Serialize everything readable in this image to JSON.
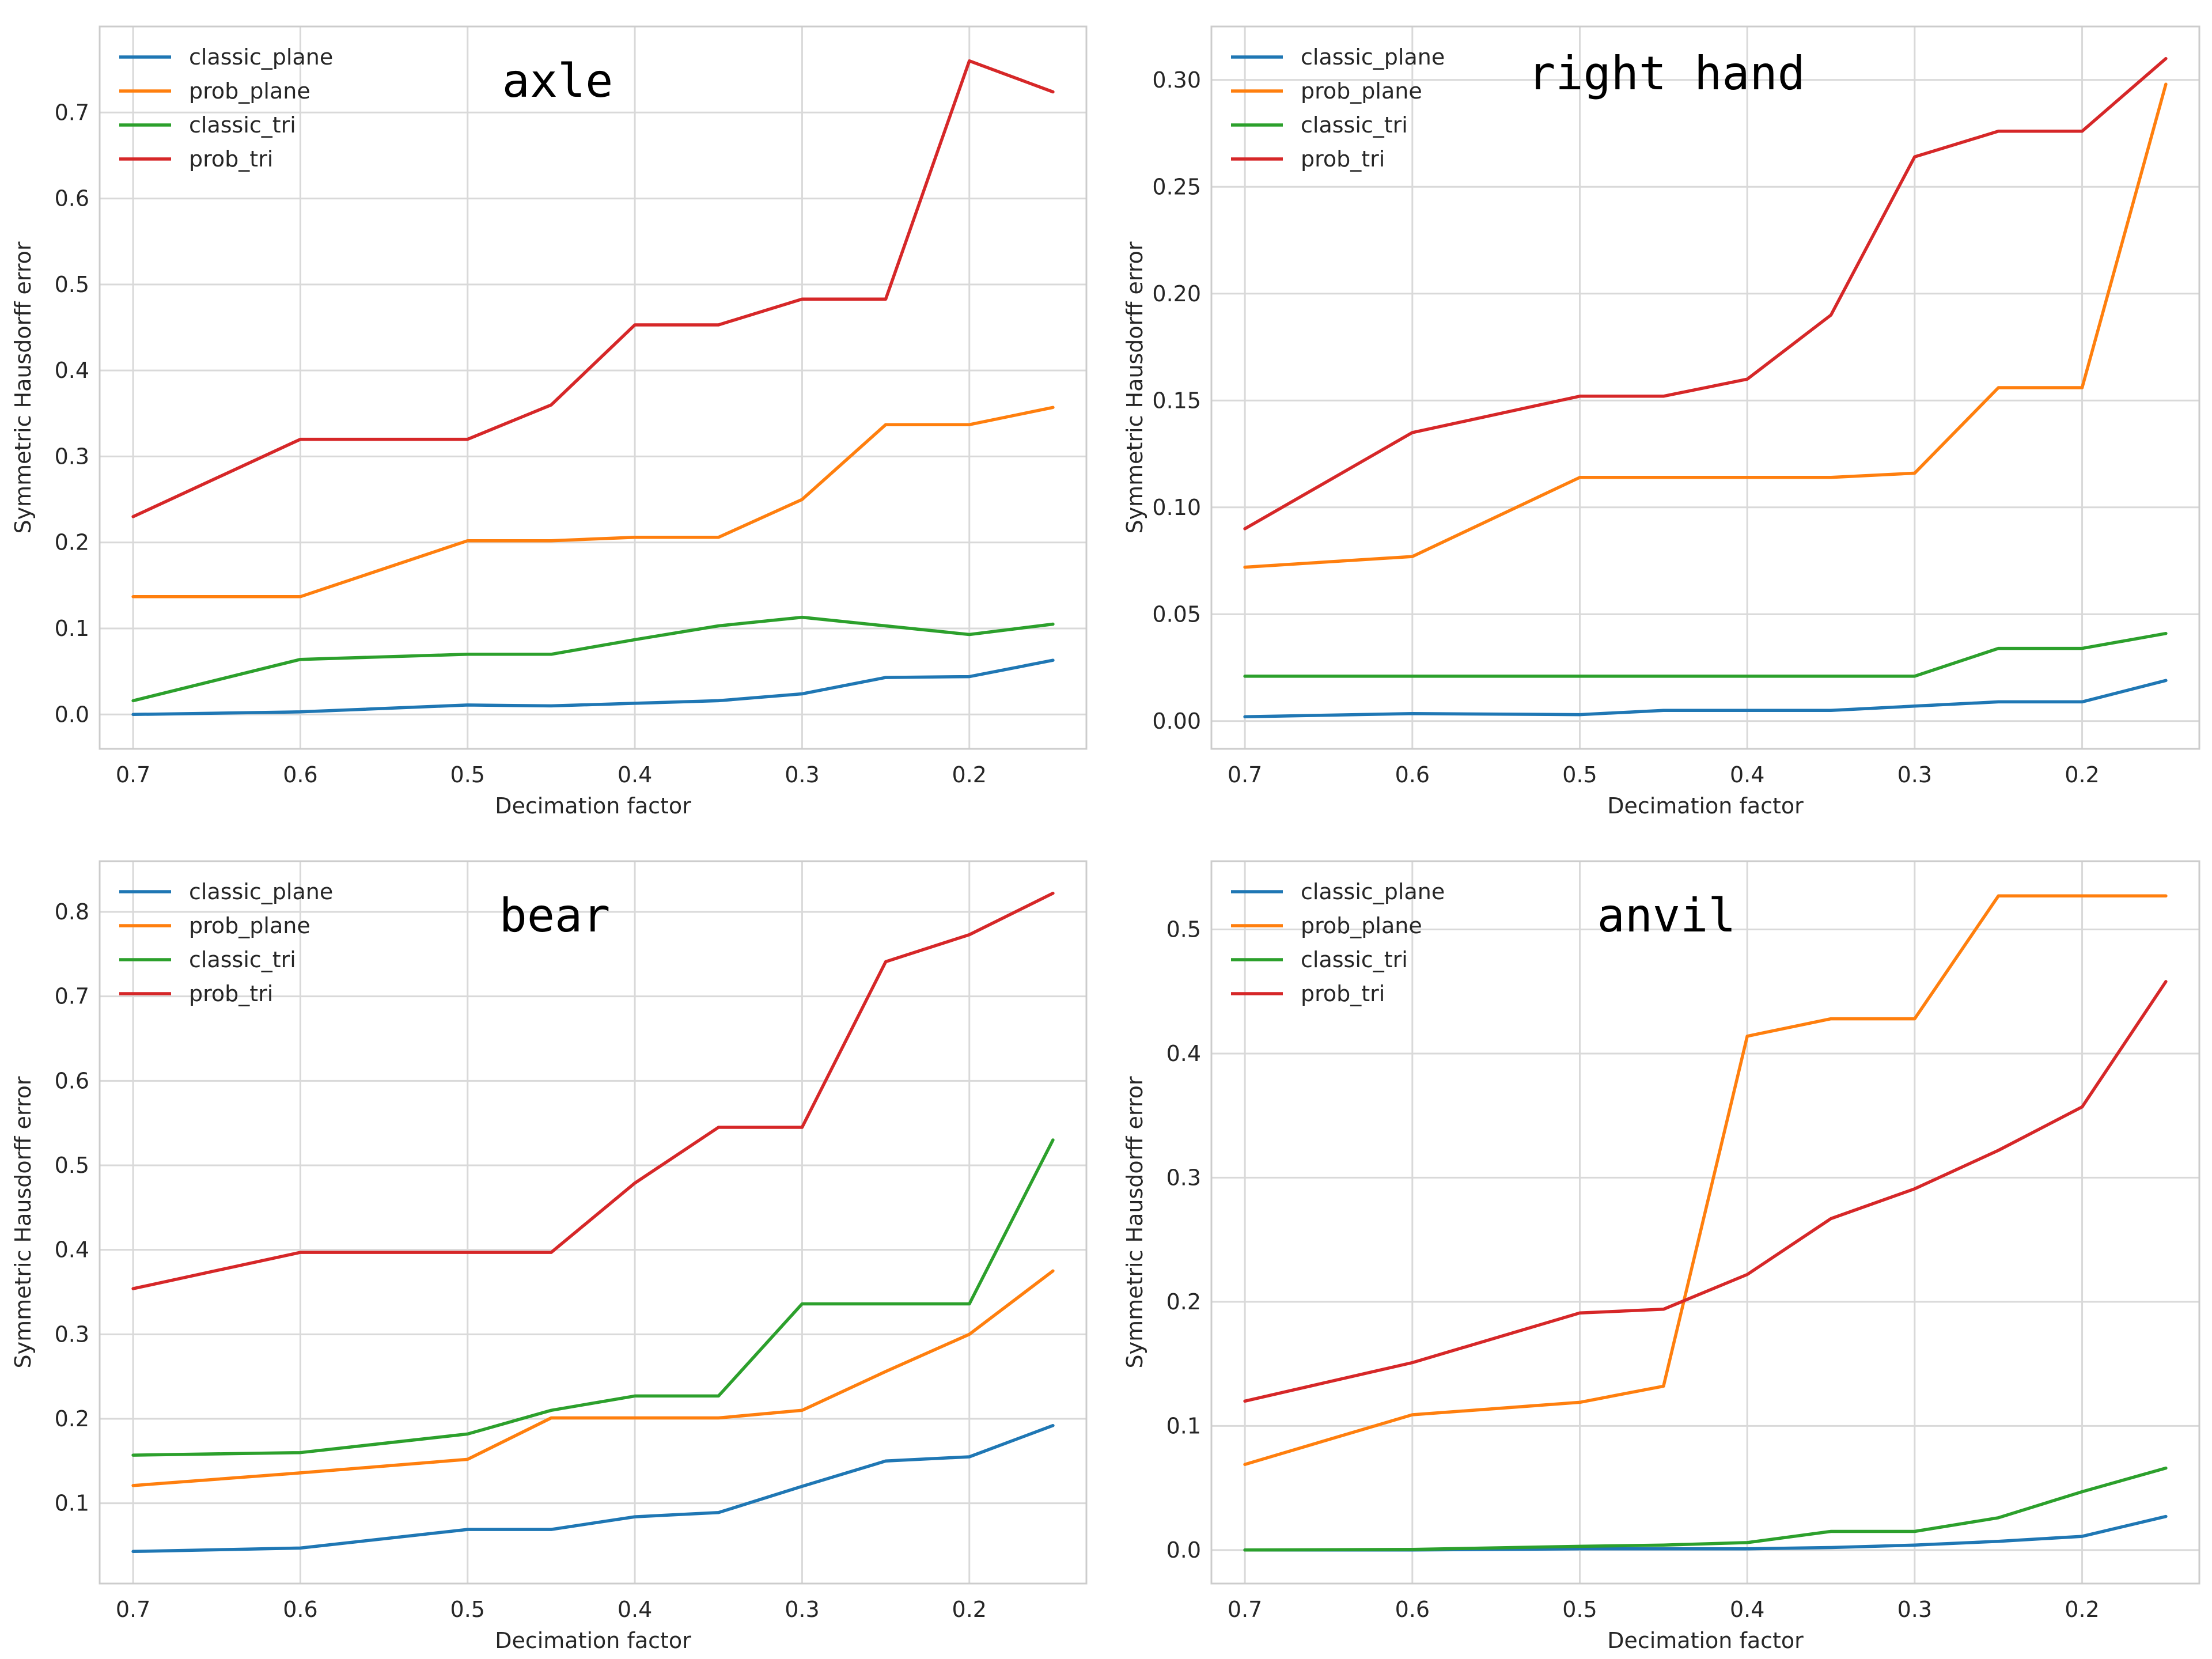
{
  "figure": {
    "background": "#ffffff",
    "panel_background": "#ffffff",
    "grid_color": "#d9d9d9",
    "frame_color": "#cccccc"
  },
  "chart_data": [
    {
      "type": "line",
      "title": "axle",
      "xlabel": "Decimation factor",
      "ylabel": "Symmetric Hausdorff error",
      "x": [
        0.7,
        0.6,
        0.5,
        0.45,
        0.4,
        0.35,
        0.3,
        0.25,
        0.2,
        0.15
      ],
      "xlim": [
        0.72,
        0.13
      ],
      "xticks": [
        "0.7",
        "0.6",
        "0.5",
        "0.4",
        "0.3",
        "0.2"
      ],
      "ylim": [
        -0.04,
        0.8
      ],
      "yticks": [
        "0.0",
        "0.1",
        "0.2",
        "0.3",
        "0.4",
        "0.5",
        "0.6",
        "0.7"
      ],
      "grid": true,
      "legend": "top-left",
      "series": [
        {
          "name": "classic_plane",
          "color": "#1f77b4",
          "values": [
            0.0,
            0.003,
            0.011,
            0.01,
            0.013,
            0.016,
            0.024,
            0.043,
            0.044,
            0.063
          ]
        },
        {
          "name": "prob_plane",
          "color": "#ff7f0e",
          "values": [
            0.137,
            0.137,
            0.202,
            0.202,
            0.206,
            0.206,
            0.25,
            0.337,
            0.337,
            0.357
          ]
        },
        {
          "name": "classic_tri",
          "color": "#2ca02c",
          "values": [
            0.016,
            0.064,
            0.07,
            0.07,
            0.087,
            0.103,
            0.113,
            0.103,
            0.093,
            0.105
          ]
        },
        {
          "name": "prob_tri",
          "color": "#d62728",
          "values": [
            0.23,
            0.32,
            0.32,
            0.36,
            0.453,
            0.453,
            0.483,
            0.483,
            0.76,
            0.724
          ]
        }
      ]
    },
    {
      "type": "line",
      "title": "right hand",
      "xlabel": "Decimation factor",
      "ylabel": "Symmetric Hausdorff error",
      "x": [
        0.7,
        0.6,
        0.5,
        0.45,
        0.4,
        0.35,
        0.3,
        0.25,
        0.2,
        0.15
      ],
      "xlim": [
        0.72,
        0.13
      ],
      "xticks": [
        "0.7",
        "0.6",
        "0.5",
        "0.4",
        "0.3",
        "0.2"
      ],
      "ylim": [
        -0.013,
        0.325
      ],
      "yticks": [
        "0.00",
        "0.05",
        "0.10",
        "0.15",
        "0.20",
        "0.25",
        "0.30"
      ],
      "grid": true,
      "legend": "top-left",
      "series": [
        {
          "name": "classic_plane",
          "color": "#1f77b4",
          "values": [
            0.002,
            0.0035,
            0.003,
            0.005,
            0.005,
            0.005,
            0.007,
            0.009,
            0.009,
            0.019
          ]
        },
        {
          "name": "prob_plane",
          "color": "#ff7f0e",
          "values": [
            0.072,
            0.077,
            0.114,
            0.114,
            0.114,
            0.114,
            0.116,
            0.156,
            0.156,
            0.298
          ]
        },
        {
          "name": "classic_tri",
          "color": "#2ca02c",
          "values": [
            0.021,
            0.021,
            0.021,
            0.021,
            0.021,
            0.021,
            0.021,
            0.034,
            0.034,
            0.041
          ]
        },
        {
          "name": "prob_tri",
          "color": "#d62728",
          "values": [
            0.09,
            0.135,
            0.152,
            0.152,
            0.16,
            0.19,
            0.264,
            0.276,
            0.276,
            0.31
          ]
        }
      ]
    },
    {
      "type": "line",
      "title": "bear",
      "xlabel": "Decimation factor",
      "ylabel": "Symmetric Hausdorff error",
      "x": [
        0.7,
        0.6,
        0.5,
        0.45,
        0.4,
        0.35,
        0.3,
        0.25,
        0.2,
        0.15
      ],
      "xlim": [
        0.72,
        0.13
      ],
      "xticks": [
        "0.7",
        "0.6",
        "0.5",
        "0.4",
        "0.3",
        "0.2"
      ],
      "ylim": [
        0.005,
        0.86
      ],
      "yticks": [
        "0.1",
        "0.2",
        "0.3",
        "0.4",
        "0.5",
        "0.6",
        "0.7",
        "0.8"
      ],
      "grid": true,
      "legend": "top-left",
      "series": [
        {
          "name": "classic_plane",
          "color": "#1f77b4",
          "values": [
            0.043,
            0.047,
            0.069,
            0.069,
            0.084,
            0.089,
            0.12,
            0.15,
            0.155,
            0.192
          ]
        },
        {
          "name": "prob_plane",
          "color": "#ff7f0e",
          "values": [
            0.121,
            0.136,
            0.152,
            0.201,
            0.201,
            0.201,
            0.21,
            0.256,
            0.3,
            0.375
          ]
        },
        {
          "name": "classic_tri",
          "color": "#2ca02c",
          "values": [
            0.157,
            0.16,
            0.182,
            0.21,
            0.227,
            0.227,
            0.336,
            0.336,
            0.336,
            0.53
          ]
        },
        {
          "name": "prob_tri",
          "color": "#d62728",
          "values": [
            0.354,
            0.397,
            0.397,
            0.397,
            0.479,
            0.545,
            0.545,
            0.741,
            0.773,
            0.822
          ]
        }
      ]
    },
    {
      "type": "line",
      "title": "anvil",
      "xlabel": "Decimation factor",
      "ylabel": "Symmetric Hausdorff error",
      "x": [
        0.7,
        0.6,
        0.5,
        0.45,
        0.4,
        0.35,
        0.3,
        0.25,
        0.2,
        0.15
      ],
      "xlim": [
        0.72,
        0.13
      ],
      "xticks": [
        "0.7",
        "0.6",
        "0.5",
        "0.4",
        "0.3",
        "0.2"
      ],
      "ylim": [
        -0.027,
        0.555
      ],
      "yticks": [
        "0.0",
        "0.1",
        "0.2",
        "0.3",
        "0.4",
        "0.5"
      ],
      "grid": true,
      "legend": "top-left",
      "series": [
        {
          "name": "classic_plane",
          "color": "#1f77b4",
          "values": [
            0.0,
            0.0,
            0.001,
            0.001,
            0.001,
            0.002,
            0.004,
            0.007,
            0.011,
            0.027
          ]
        },
        {
          "name": "prob_plane",
          "color": "#ff7f0e",
          "values": [
            0.069,
            0.109,
            0.119,
            0.132,
            0.414,
            0.428,
            0.428,
            0.527,
            0.527,
            0.527
          ]
        },
        {
          "name": "classic_tri",
          "color": "#2ca02c",
          "values": [
            0.0,
            0.0005,
            0.003,
            0.004,
            0.006,
            0.015,
            0.015,
            0.026,
            0.047,
            0.066
          ]
        },
        {
          "name": "prob_tri",
          "color": "#d62728",
          "values": [
            0.12,
            0.151,
            0.191,
            0.194,
            0.222,
            0.267,
            0.291,
            0.322,
            0.357,
            0.458
          ]
        }
      ]
    }
  ]
}
